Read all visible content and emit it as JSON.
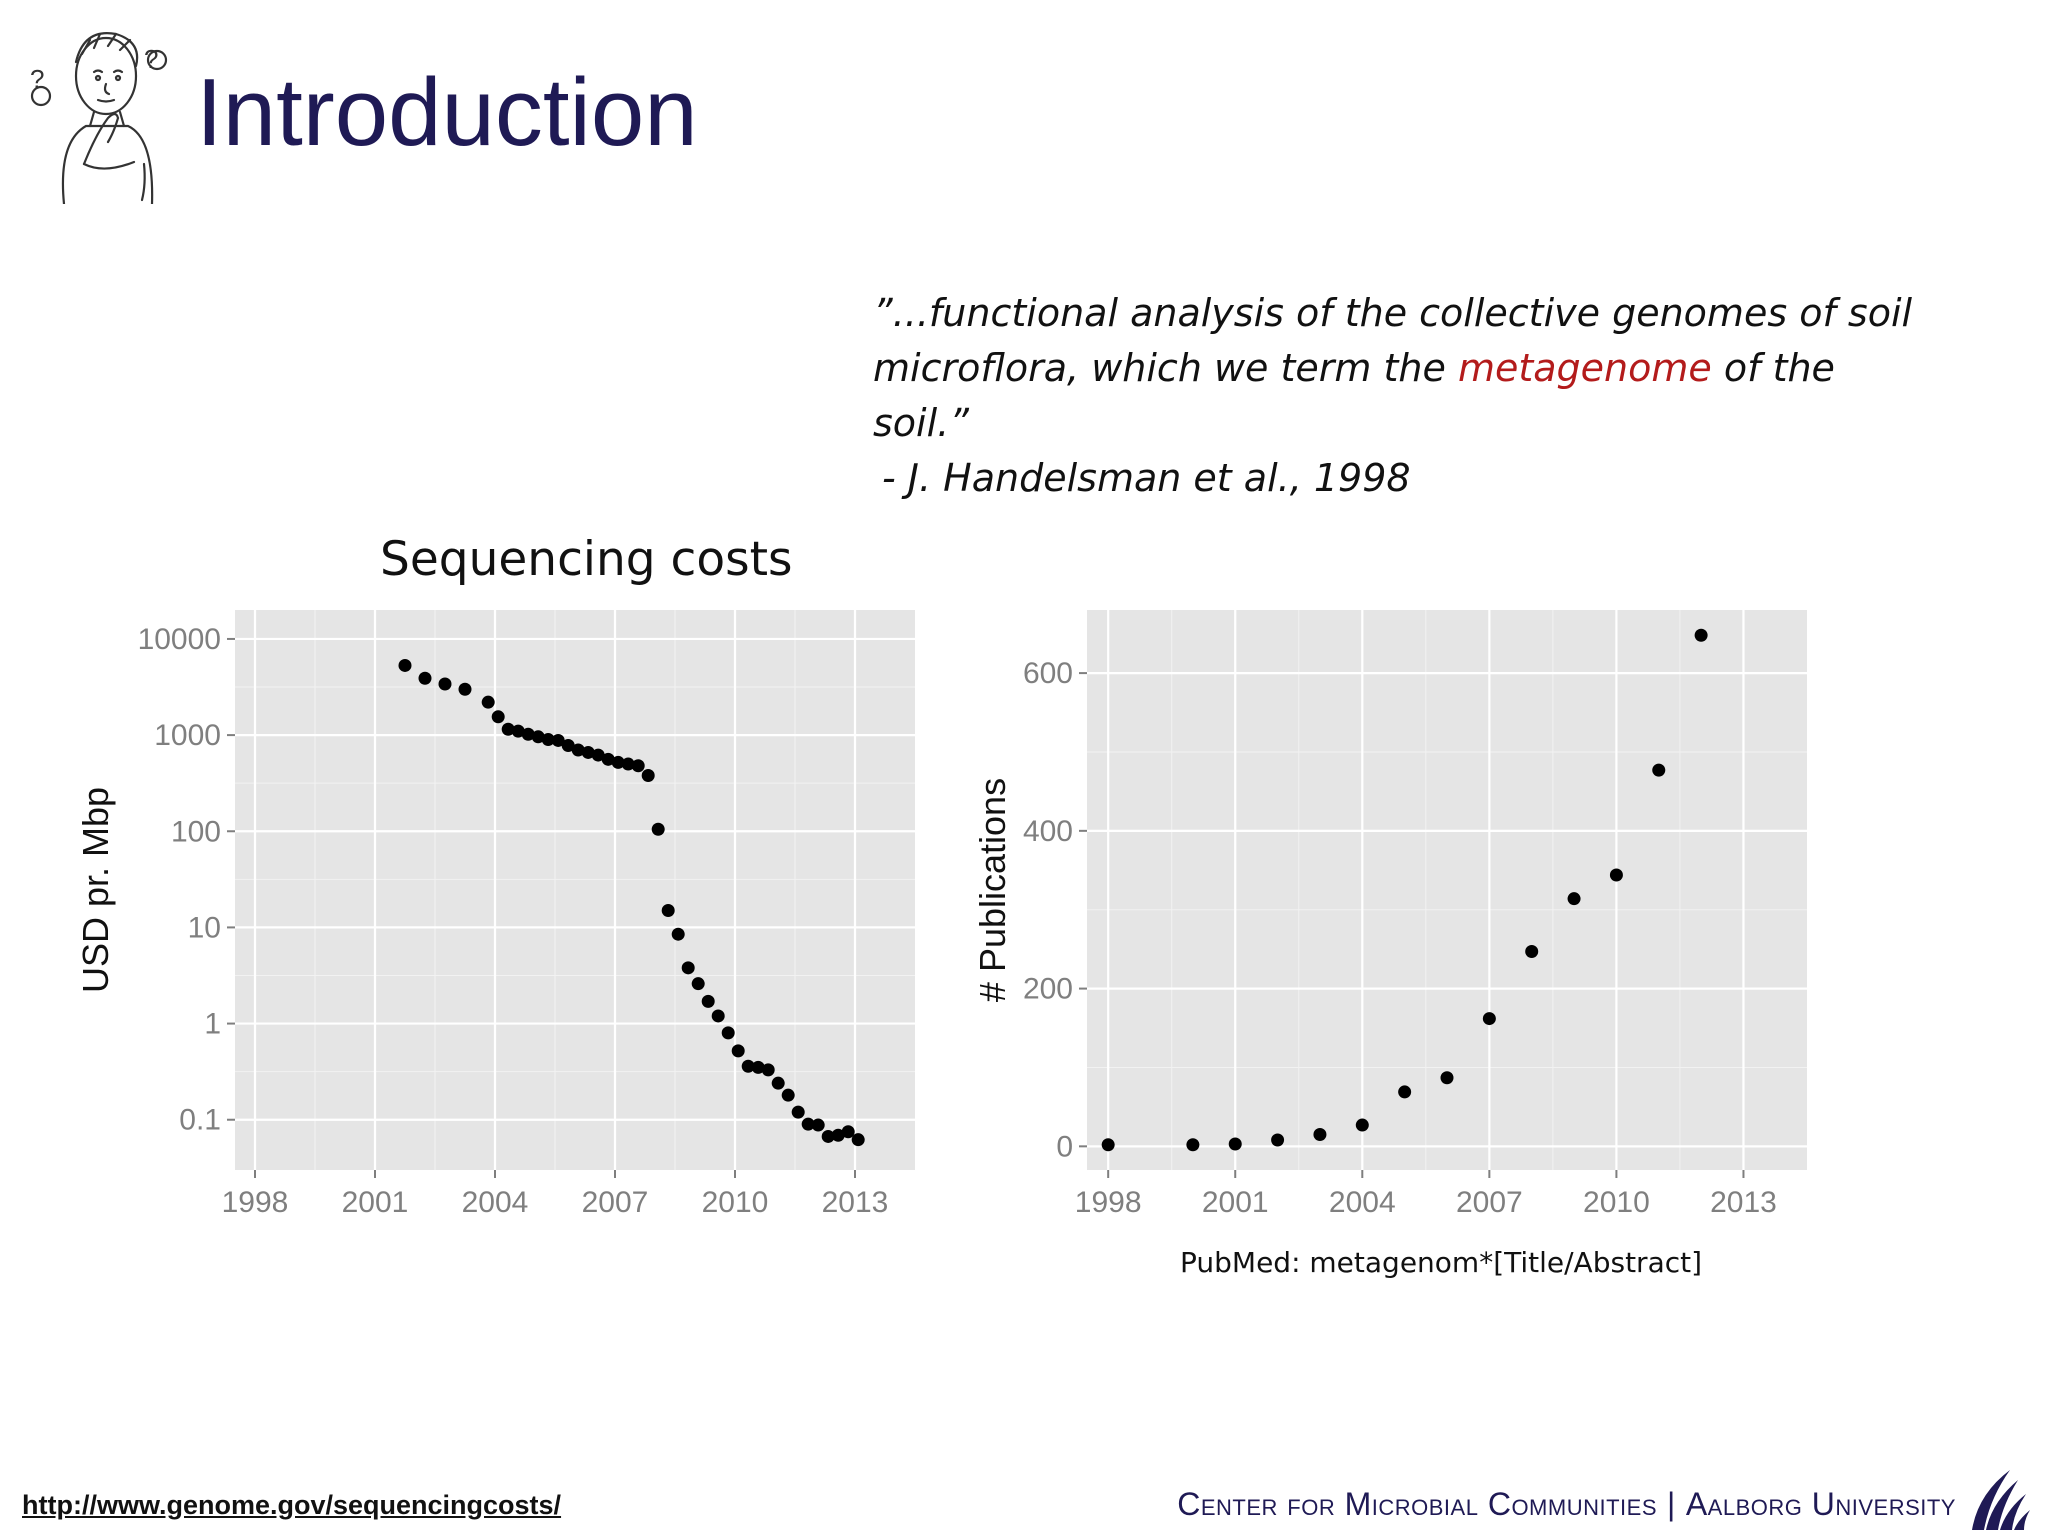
{
  "slide": {
    "title": "Introduction",
    "quote_before": "”...functional analysis of the collective genomes of soil microflora, which we term the ",
    "quote_highlight": "metagenome",
    "quote_after": " of the soil.”",
    "attribution": "- J. Handelsman et al., 1998",
    "chart_heading": "Sequencing costs",
    "caption": "PubMed: metagenom*[Title/Abstract]",
    "source_link": "http://www.genome.gov/sequencingcosts/",
    "footer_left": "Center for Microbial Communities",
    "footer_sep": "|",
    "footer_right": "Aalborg University"
  },
  "colors": {
    "title": "#1f1a55",
    "highlight": "#b31b1b",
    "panel": "#e5e5e5",
    "point": "#000000",
    "tick_text": "#7f7f7f"
  },
  "chart_data": [
    {
      "type": "scatter",
      "title": "",
      "xlabel": "",
      "ylabel": "USD pr. Mbp",
      "y_scale": "log",
      "xlim": [
        1997.5,
        2014.5
      ],
      "ylim": [
        0.03,
        20000
      ],
      "x_ticks": [
        1998,
        2001,
        2004,
        2007,
        2010,
        2013
      ],
      "y_ticks": [
        10000,
        1000,
        100,
        10,
        1,
        0.1
      ],
      "y_tick_labels": [
        "10000",
        "1000",
        "100",
        "10",
        "1",
        "0.1"
      ],
      "grid": true,
      "points": [
        {
          "x": 2001.75,
          "y": 5300
        },
        {
          "x": 2002.25,
          "y": 3900
        },
        {
          "x": 2002.75,
          "y": 3400
        },
        {
          "x": 2003.25,
          "y": 3000
        },
        {
          "x": 2003.83,
          "y": 2200
        },
        {
          "x": 2004.08,
          "y": 1550
        },
        {
          "x": 2004.33,
          "y": 1150
        },
        {
          "x": 2004.58,
          "y": 1100
        },
        {
          "x": 2004.83,
          "y": 1020
        },
        {
          "x": 2005.08,
          "y": 960
        },
        {
          "x": 2005.33,
          "y": 900
        },
        {
          "x": 2005.58,
          "y": 880
        },
        {
          "x": 2005.83,
          "y": 780
        },
        {
          "x": 2006.08,
          "y": 700
        },
        {
          "x": 2006.33,
          "y": 660
        },
        {
          "x": 2006.58,
          "y": 620
        },
        {
          "x": 2006.83,
          "y": 560
        },
        {
          "x": 2007.08,
          "y": 520
        },
        {
          "x": 2007.33,
          "y": 500
        },
        {
          "x": 2007.58,
          "y": 480
        },
        {
          "x": 2007.83,
          "y": 380
        },
        {
          "x": 2008.08,
          "y": 105
        },
        {
          "x": 2008.33,
          "y": 15
        },
        {
          "x": 2008.58,
          "y": 8.5
        },
        {
          "x": 2008.83,
          "y": 3.8
        },
        {
          "x": 2009.08,
          "y": 2.6
        },
        {
          "x": 2009.33,
          "y": 1.7
        },
        {
          "x": 2009.58,
          "y": 1.2
        },
        {
          "x": 2009.83,
          "y": 0.8
        },
        {
          "x": 2010.08,
          "y": 0.52
        },
        {
          "x": 2010.33,
          "y": 0.36
        },
        {
          "x": 2010.58,
          "y": 0.35
        },
        {
          "x": 2010.83,
          "y": 0.33
        },
        {
          "x": 2011.08,
          "y": 0.24
        },
        {
          "x": 2011.33,
          "y": 0.18
        },
        {
          "x": 2011.58,
          "y": 0.12
        },
        {
          "x": 2011.83,
          "y": 0.09
        },
        {
          "x": 2012.08,
          "y": 0.088
        },
        {
          "x": 2012.33,
          "y": 0.067
        },
        {
          "x": 2012.58,
          "y": 0.069
        },
        {
          "x": 2012.83,
          "y": 0.075
        },
        {
          "x": 2013.08,
          "y": 0.062
        }
      ]
    },
    {
      "type": "scatter",
      "title": "",
      "xlabel": "",
      "ylabel": "# Publications",
      "xlim": [
        1997.5,
        2014.5
      ],
      "ylim": [
        -30,
        680
      ],
      "x_ticks": [
        1998,
        2001,
        2004,
        2007,
        2010,
        2013
      ],
      "y_ticks": [
        0,
        200,
        400,
        600
      ],
      "y_tick_labels": [
        "0",
        "200",
        "400",
        "600"
      ],
      "grid": true,
      "points": [
        {
          "x": 1998,
          "y": 2
        },
        {
          "x": 2000,
          "y": 2
        },
        {
          "x": 2001,
          "y": 3
        },
        {
          "x": 2002,
          "y": 8
        },
        {
          "x": 2003,
          "y": 15
        },
        {
          "x": 2004,
          "y": 27
        },
        {
          "x": 2005,
          "y": 69
        },
        {
          "x": 2006,
          "y": 87
        },
        {
          "x": 2007,
          "y": 162
        },
        {
          "x": 2008,
          "y": 247
        },
        {
          "x": 2009,
          "y": 314
        },
        {
          "x": 2010,
          "y": 344
        },
        {
          "x": 2011,
          "y": 477
        },
        {
          "x": 2012,
          "y": 648
        }
      ]
    }
  ]
}
